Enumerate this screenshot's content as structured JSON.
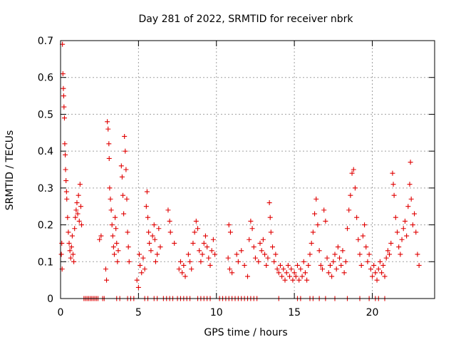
{
  "chart_data": {
    "type": "scatter",
    "title": "Day 281 of 2022, SRMTID for receiver nbrk",
    "xlabel": "GPS time / hours",
    "ylabel": "SRMTID / TECUs",
    "xlim": [
      0,
      24
    ],
    "ylim": [
      0,
      0.7
    ],
    "x_ticks": [
      0,
      5,
      10,
      15,
      20
    ],
    "y_ticks": [
      0,
      0.1,
      0.2,
      0.3,
      0.4,
      0.5,
      0.6,
      0.7
    ],
    "grid": true,
    "marker": "plus",
    "color": "#e00000",
    "series": [
      {
        "name": "SRMTID",
        "points": [
          [
            0.05,
            0.12
          ],
          [
            0.08,
            0.15
          ],
          [
            0.1,
            0.08
          ],
          [
            0.12,
            0.69
          ],
          [
            0.15,
            0.61
          ],
          [
            0.18,
            0.57
          ],
          [
            0.2,
            0.55
          ],
          [
            0.22,
            0.52
          ],
          [
            0.25,
            0.49
          ],
          [
            0.27,
            0.42
          ],
          [
            0.3,
            0.39
          ],
          [
            0.32,
            0.35
          ],
          [
            0.35,
            0.32
          ],
          [
            0.38,
            0.29
          ],
          [
            0.4,
            0.27
          ],
          [
            0.45,
            0.22
          ],
          [
            0.5,
            0.18
          ],
          [
            0.55,
            0.15
          ],
          [
            0.6,
            0.13
          ],
          [
            0.65,
            0.11
          ],
          [
            0.7,
            0.14
          ],
          [
            0.75,
            0.17
          ],
          [
            0.8,
            0.12
          ],
          [
            0.85,
            0.1
          ],
          [
            0.9,
            0.19
          ],
          [
            0.95,
            0.22
          ],
          [
            1.0,
            0.24
          ],
          [
            1.05,
            0.26
          ],
          [
            1.1,
            0.23
          ],
          [
            1.15,
            0.28
          ],
          [
            1.2,
            0.21
          ],
          [
            1.25,
            0.31
          ],
          [
            1.3,
            0.25
          ],
          [
            1.35,
            0.2
          ],
          [
            1.5,
            0.0
          ],
          [
            1.6,
            0.0
          ],
          [
            1.7,
            0.0
          ],
          [
            1.8,
            0.0
          ],
          [
            1.9,
            0.0
          ],
          [
            2.0,
            0.0
          ],
          [
            2.1,
            0.0
          ],
          [
            2.2,
            0.0
          ],
          [
            2.3,
            0.0
          ],
          [
            2.4,
            0.0
          ],
          [
            2.5,
            0.16
          ],
          [
            2.6,
            0.17
          ],
          [
            2.7,
            0.0
          ],
          [
            2.8,
            0.0
          ],
          [
            2.9,
            0.08
          ],
          [
            2.95,
            0.05
          ],
          [
            3.0,
            0.48
          ],
          [
            3.05,
            0.46
          ],
          [
            3.1,
            0.42
          ],
          [
            3.12,
            0.38
          ],
          [
            3.15,
            0.3
          ],
          [
            3.2,
            0.27
          ],
          [
            3.25,
            0.24
          ],
          [
            3.3,
            0.2
          ],
          [
            3.35,
            0.17
          ],
          [
            3.4,
            0.14
          ],
          [
            3.45,
            0.12
          ],
          [
            3.5,
            0.22
          ],
          [
            3.55,
            0.19
          ],
          [
            3.6,
            0.15
          ],
          [
            3.65,
            0.1
          ],
          [
            3.7,
            0.13
          ],
          [
            3.6,
            0.0
          ],
          [
            3.8,
            0.0
          ],
          [
            3.9,
            0.36
          ],
          [
            3.95,
            0.33
          ],
          [
            4.0,
            0.28
          ],
          [
            4.05,
            0.23
          ],
          [
            4.1,
            0.44
          ],
          [
            4.15,
            0.4
          ],
          [
            4.2,
            0.35
          ],
          [
            4.25,
            0.27
          ],
          [
            4.3,
            0.18
          ],
          [
            4.35,
            0.14
          ],
          [
            4.4,
            0.1
          ],
          [
            4.3,
            0.0
          ],
          [
            4.5,
            0.0
          ],
          [
            4.7,
            0.0
          ],
          [
            4.9,
            0.05
          ],
          [
            5.0,
            0.03
          ],
          [
            5.05,
            0.12
          ],
          [
            5.1,
            0.09
          ],
          [
            5.2,
            0.07
          ],
          [
            5.3,
            0.11
          ],
          [
            5.4,
            0.08
          ],
          [
            5.5,
            0.25
          ],
          [
            5.55,
            0.29
          ],
          [
            5.6,
            0.22
          ],
          [
            5.65,
            0.18
          ],
          [
            5.7,
            0.15
          ],
          [
            5.8,
            0.13
          ],
          [
            5.9,
            0.17
          ],
          [
            6.0,
            0.2
          ],
          [
            6.05,
            0.16
          ],
          [
            6.1,
            0.1
          ],
          [
            6.2,
            0.12
          ],
          [
            6.3,
            0.19
          ],
          [
            6.4,
            0.14
          ],
          [
            5.4,
            0.0
          ],
          [
            5.6,
            0.0
          ],
          [
            6.0,
            0.0
          ],
          [
            6.2,
            0.0
          ],
          [
            6.6,
            0.0
          ],
          [
            6.8,
            0.0
          ],
          [
            7.0,
            0.0
          ],
          [
            7.2,
            0.0
          ],
          [
            6.9,
            0.24
          ],
          [
            7.0,
            0.21
          ],
          [
            7.05,
            0.18
          ],
          [
            7.3,
            0.15
          ],
          [
            7.5,
            0.0
          ],
          [
            7.7,
            0.0
          ],
          [
            7.9,
            0.0
          ],
          [
            7.6,
            0.08
          ],
          [
            7.7,
            0.1
          ],
          [
            7.8,
            0.07
          ],
          [
            7.9,
            0.09
          ],
          [
            8.0,
            0.06
          ],
          [
            8.2,
            0.12
          ],
          [
            8.3,
            0.1
          ],
          [
            8.4,
            0.08
          ],
          [
            8.5,
            0.15
          ],
          [
            8.6,
            0.18
          ],
          [
            8.7,
            0.21
          ],
          [
            8.8,
            0.19
          ],
          [
            8.9,
            0.13
          ],
          [
            9.0,
            0.1
          ],
          [
            9.1,
            0.12
          ],
          [
            9.2,
            0.15
          ],
          [
            9.3,
            0.17
          ],
          [
            9.4,
            0.14
          ],
          [
            9.5,
            0.11
          ],
          [
            9.6,
            0.09
          ],
          [
            9.7,
            0.13
          ],
          [
            9.8,
            0.16
          ],
          [
            9.9,
            0.12
          ],
          [
            8.1,
            0.0
          ],
          [
            8.3,
            0.0
          ],
          [
            8.8,
            0.0
          ],
          [
            9.0,
            0.0
          ],
          [
            9.2,
            0.0
          ],
          [
            9.4,
            0.0
          ],
          [
            9.6,
            0.0
          ],
          [
            10.2,
            0.0
          ],
          [
            10.4,
            0.0
          ],
          [
            10.6,
            0.0
          ],
          [
            10.8,
            0.0
          ],
          [
            11.0,
            0.0
          ],
          [
            11.2,
            0.0
          ],
          [
            11.4,
            0.0
          ],
          [
            11.6,
            0.0
          ],
          [
            11.8,
            0.0
          ],
          [
            12.0,
            0.0
          ],
          [
            12.2,
            0.0
          ],
          [
            12.4,
            0.0
          ],
          [
            12.6,
            0.0
          ],
          [
            10.8,
            0.2
          ],
          [
            10.9,
            0.18
          ],
          [
            10.75,
            0.11
          ],
          [
            10.85,
            0.08
          ],
          [
            11.0,
            0.07
          ],
          [
            11.3,
            0.12
          ],
          [
            11.4,
            0.1
          ],
          [
            11.6,
            0.13
          ],
          [
            11.8,
            0.09
          ],
          [
            12.0,
            0.06
          ],
          [
            12.1,
            0.16
          ],
          [
            12.2,
            0.21
          ],
          [
            12.3,
            0.19
          ],
          [
            12.4,
            0.14
          ],
          [
            12.5,
            0.11
          ],
          [
            12.7,
            0.1
          ],
          [
            12.8,
            0.15
          ],
          [
            12.9,
            0.13
          ],
          [
            13.0,
            0.16
          ],
          [
            13.1,
            0.12
          ],
          [
            13.2,
            0.09
          ],
          [
            13.3,
            0.11
          ],
          [
            13.4,
            0.26
          ],
          [
            13.45,
            0.22
          ],
          [
            13.5,
            0.18
          ],
          [
            13.6,
            0.14
          ],
          [
            13.7,
            0.1
          ],
          [
            13.8,
            0.12
          ],
          [
            13.9,
            0.08
          ],
          [
            14.0,
            0.07
          ],
          [
            14.1,
            0.09
          ],
          [
            14.2,
            0.06
          ],
          [
            14.3,
            0.08
          ],
          [
            14.4,
            0.05
          ],
          [
            14.5,
            0.07
          ],
          [
            14.6,
            0.09
          ],
          [
            14.7,
            0.06
          ],
          [
            14.8,
            0.08
          ],
          [
            14.9,
            0.05
          ],
          [
            15.0,
            0.07
          ],
          [
            15.1,
            0.06
          ],
          [
            15.2,
            0.09
          ],
          [
            15.3,
            0.05
          ],
          [
            15.4,
            0.08
          ],
          [
            15.5,
            0.06
          ],
          [
            15.6,
            0.1
          ],
          [
            15.7,
            0.07
          ],
          [
            15.8,
            0.05
          ],
          [
            15.9,
            0.09
          ],
          [
            16.0,
            0.12
          ],
          [
            16.1,
            0.15
          ],
          [
            16.2,
            0.18
          ],
          [
            16.3,
            0.23
          ],
          [
            16.4,
            0.27
          ],
          [
            16.5,
            0.2
          ],
          [
            16.6,
            0.13
          ],
          [
            16.7,
            0.09
          ],
          [
            16.8,
            0.08
          ],
          [
            16.9,
            0.24
          ],
          [
            17.0,
            0.21
          ],
          [
            17.1,
            0.11
          ],
          [
            17.2,
            0.07
          ],
          [
            17.3,
            0.09
          ],
          [
            17.4,
            0.06
          ],
          [
            17.5,
            0.1
          ],
          [
            17.6,
            0.12
          ],
          [
            17.7,
            0.08
          ],
          [
            17.8,
            0.14
          ],
          [
            17.9,
            0.11
          ],
          [
            18.0,
            0.09
          ],
          [
            18.1,
            0.13
          ],
          [
            18.2,
            0.07
          ],
          [
            18.3,
            0.1
          ],
          [
            18.4,
            0.19
          ],
          [
            18.5,
            0.24
          ],
          [
            18.6,
            0.28
          ],
          [
            18.7,
            0.34
          ],
          [
            18.8,
            0.35
          ],
          [
            18.9,
            0.3
          ],
          [
            19.0,
            0.22
          ],
          [
            19.1,
            0.16
          ],
          [
            19.2,
            0.12
          ],
          [
            19.3,
            0.09
          ],
          [
            19.4,
            0.17
          ],
          [
            19.5,
            0.2
          ],
          [
            19.6,
            0.14
          ],
          [
            19.7,
            0.1
          ],
          [
            19.8,
            0.12
          ],
          [
            19.9,
            0.08
          ],
          [
            20.0,
            0.06
          ],
          [
            20.1,
            0.09
          ],
          [
            20.2,
            0.07
          ],
          [
            20.3,
            0.05
          ],
          [
            20.4,
            0.08
          ],
          [
            20.5,
            0.1
          ],
          [
            20.6,
            0.07
          ],
          [
            20.7,
            0.09
          ],
          [
            20.8,
            0.06
          ],
          [
            20.9,
            0.11
          ],
          [
            21.0,
            0.13
          ],
          [
            21.1,
            0.12
          ],
          [
            21.2,
            0.15
          ],
          [
            21.3,
            0.34
          ],
          [
            21.35,
            0.31
          ],
          [
            21.4,
            0.28
          ],
          [
            21.5,
            0.22
          ],
          [
            21.6,
            0.18
          ],
          [
            21.7,
            0.14
          ],
          [
            21.8,
            0.12
          ],
          [
            21.9,
            0.16
          ],
          [
            22.0,
            0.19
          ],
          [
            22.1,
            0.21
          ],
          [
            22.2,
            0.17
          ],
          [
            22.3,
            0.25
          ],
          [
            22.4,
            0.31
          ],
          [
            22.45,
            0.37
          ],
          [
            22.5,
            0.27
          ],
          [
            22.6,
            0.2
          ],
          [
            22.7,
            0.23
          ],
          [
            22.8,
            0.18
          ],
          [
            22.9,
            0.12
          ],
          [
            23.0,
            0.09
          ],
          [
            14.0,
            0.0
          ],
          [
            15.2,
            0.0
          ],
          [
            15.4,
            0.0
          ],
          [
            16.0,
            0.0
          ],
          [
            16.2,
            0.0
          ],
          [
            16.6,
            0.0
          ],
          [
            17.0,
            0.0
          ],
          [
            17.6,
            0.0
          ],
          [
            18.4,
            0.0
          ],
          [
            19.2,
            0.0
          ],
          [
            19.8,
            0.0
          ],
          [
            20.2,
            0.0
          ],
          [
            20.4,
            0.0
          ],
          [
            20.8,
            0.0
          ]
        ]
      }
    ]
  }
}
